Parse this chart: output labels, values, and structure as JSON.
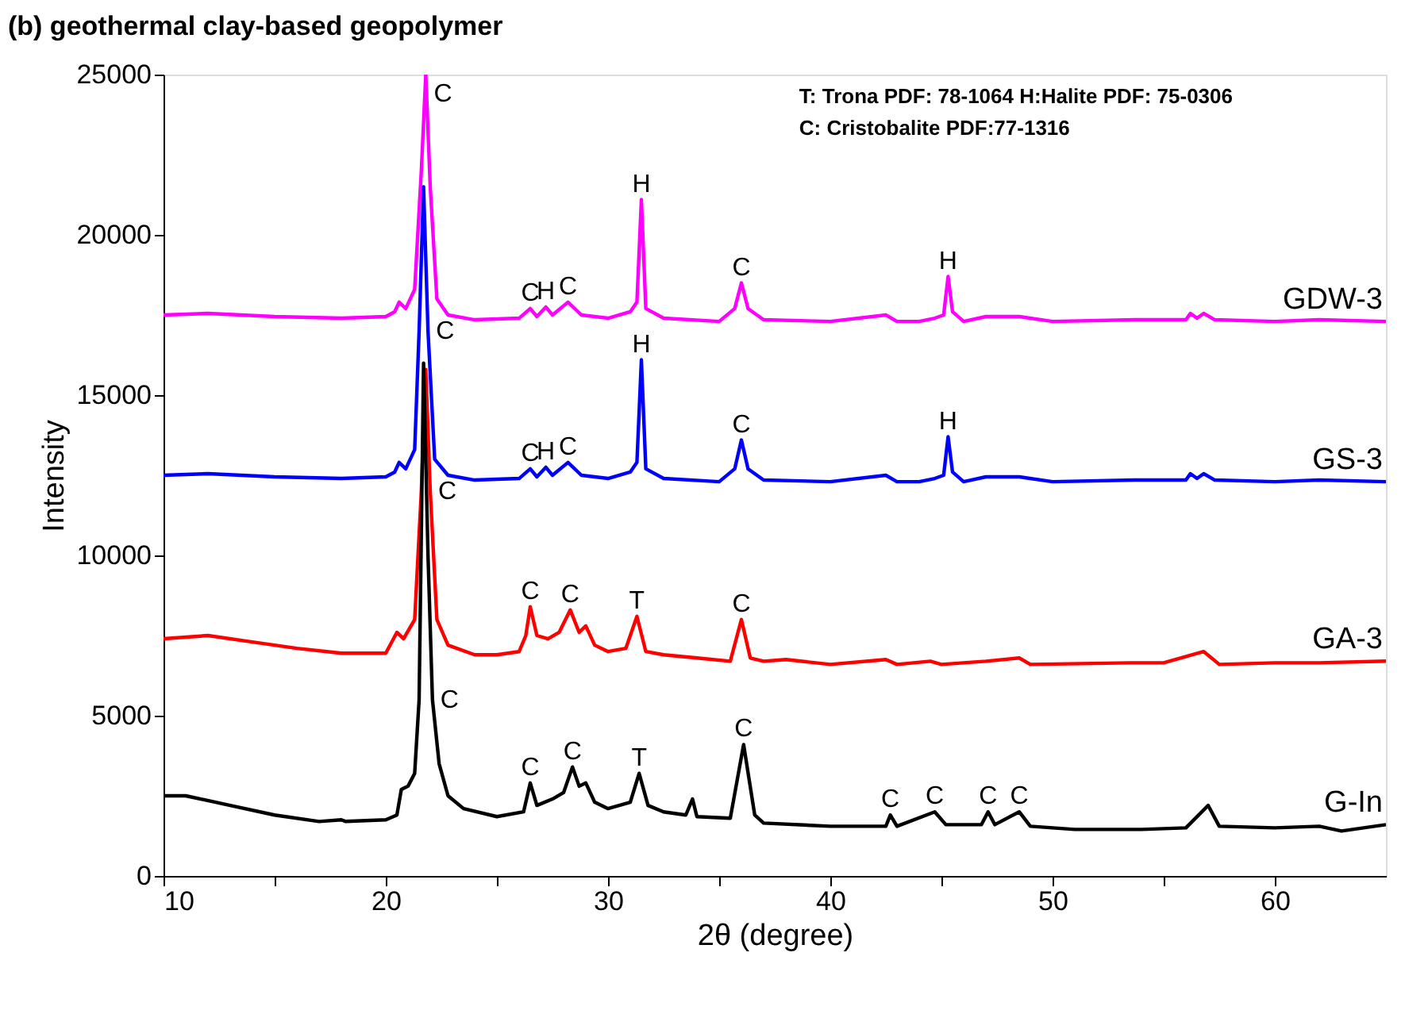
{
  "chart_data": {
    "type": "line",
    "title": "(b) geothermal clay-based geopolymer",
    "xlabel": "2θ (degree)",
    "ylabel": "Intensity",
    "xlim": [
      10,
      65
    ],
    "ylim": [
      0,
      25000
    ],
    "xticks": [
      10,
      {
        "value": 15,
        "label": null
      },
      20,
      {
        "value": 25,
        "label": null
      },
      30,
      {
        "value": 35,
        "label": null
      },
      40,
      {
        "value": 45,
        "label": null
      },
      50,
      {
        "value": 55,
        "label": null
      },
      60
    ],
    "yticks": [
      0,
      5000,
      10000,
      15000,
      20000,
      25000
    ],
    "grid": false,
    "legend": false,
    "marker": "none",
    "line_style": "solid",
    "series": [
      {
        "name": "GDW-3",
        "color": "#ff00ff",
        "x": [
          10,
          12,
          15,
          18,
          20,
          20.4,
          20.6,
          20.9,
          21.3,
          21.6,
          21.8,
          22.0,
          22.3,
          22.8,
          24,
          26,
          26.5,
          26.8,
          27.2,
          27.5,
          28.2,
          28.8,
          30,
          31,
          31.3,
          31.5,
          31.7,
          32.5,
          35,
          35.7,
          36,
          36.3,
          37,
          40,
          42.5,
          43,
          44,
          44.7,
          45.1,
          45.3,
          45.5,
          46,
          47,
          48.5,
          50,
          53.7,
          56,
          56.2,
          56.5,
          56.8,
          57.3,
          60,
          62,
          65
        ],
        "values": [
          17500,
          17550,
          17450,
          17400,
          17450,
          17600,
          17900,
          17700,
          18300,
          22000,
          25000,
          21500,
          18000,
          17500,
          17350,
          17400,
          17700,
          17450,
          17750,
          17500,
          17900,
          17500,
          17400,
          17600,
          17900,
          21100,
          17700,
          17400,
          17300,
          17700,
          18500,
          17700,
          17350,
          17300,
          17500,
          17300,
          17300,
          17400,
          17500,
          18700,
          17600,
          17300,
          17450,
          17450,
          17300,
          17350,
          17350,
          17550,
          17400,
          17550,
          17350,
          17300,
          17350,
          17300
        ]
      },
      {
        "name": "GS-3",
        "color": "#0000ff",
        "x": [
          10,
          12,
          15,
          18,
          20,
          20.4,
          20.6,
          20.9,
          21.3,
          21.5,
          21.7,
          21.9,
          22.2,
          22.8,
          24,
          26,
          26.5,
          26.8,
          27.2,
          27.5,
          28.2,
          28.8,
          30,
          31,
          31.3,
          31.5,
          31.7,
          32.5,
          35,
          35.7,
          36,
          36.3,
          37,
          40,
          42.5,
          43,
          44,
          44.7,
          45.1,
          45.3,
          45.5,
          46,
          47,
          48.5,
          50,
          53.7,
          56,
          56.2,
          56.5,
          56.8,
          57.3,
          60,
          62,
          65
        ],
        "values": [
          12500,
          12550,
          12450,
          12400,
          12450,
          12600,
          12900,
          12700,
          13300,
          17000,
          21500,
          17000,
          13000,
          12500,
          12350,
          12400,
          12700,
          12450,
          12750,
          12500,
          12900,
          12500,
          12400,
          12600,
          12900,
          16100,
          12700,
          12400,
          12300,
          12700,
          13600,
          12700,
          12350,
          12300,
          12500,
          12300,
          12300,
          12400,
          12500,
          13700,
          12600,
          12300,
          12450,
          12450,
          12300,
          12350,
          12350,
          12550,
          12400,
          12550,
          12350,
          12300,
          12350,
          12300
        ]
      },
      {
        "name": "GA-3",
        "color": "#ff0000",
        "x": [
          10,
          12,
          14,
          16,
          18,
          20,
          20.5,
          20.8,
          21.3,
          21.6,
          21.8,
          22.0,
          22.3,
          22.8,
          24,
          25,
          26,
          26.3,
          26.5,
          26.8,
          27.3,
          27.8,
          28.3,
          28.7,
          29,
          29.4,
          30,
          30.8,
          31.3,
          31.7,
          32.5,
          34,
          35.5,
          36,
          36.4,
          37,
          38,
          40,
          42.5,
          43,
          44.5,
          45,
          47,
          48.5,
          49,
          53.5,
          55,
          56.8,
          57.5,
          60,
          62,
          65
        ],
        "values": [
          7400,
          7500,
          7300,
          7100,
          6950,
          6950,
          7600,
          7400,
          8000,
          12000,
          15800,
          12000,
          8000,
          7200,
          6900,
          6900,
          7000,
          7500,
          8400,
          7500,
          7400,
          7600,
          8300,
          7600,
          7800,
          7200,
          7000,
          7100,
          8100,
          7000,
          6900,
          6800,
          6700,
          8000,
          6800,
          6700,
          6750,
          6600,
          6750,
          6600,
          6700,
          6600,
          6700,
          6800,
          6600,
          6650,
          6650,
          7000,
          6600,
          6650,
          6650,
          6700
        ]
      },
      {
        "name": "G-In",
        "color": "#000000",
        "x": [
          10,
          11,
          13,
          15,
          17,
          18,
          18.2,
          20,
          20.5,
          20.7,
          21,
          21.3,
          21.5,
          21.7,
          21.9,
          22.1,
          22.4,
          22.8,
          23.5,
          25,
          26.2,
          26.5,
          26.8,
          27.5,
          28,
          28.4,
          28.7,
          29,
          29.4,
          30,
          31,
          31.4,
          31.8,
          32.5,
          33.5,
          33.8,
          34,
          35.5,
          36.1,
          36.6,
          37,
          40,
          42.5,
          42.7,
          43,
          44.7,
          45.2,
          46.8,
          47.1,
          47.4,
          48.5,
          49,
          51,
          54,
          56,
          57,
          57.5,
          60,
          62,
          63,
          65
        ],
        "values": [
          2500,
          2500,
          2200,
          1900,
          1700,
          1750,
          1700,
          1750,
          1900,
          2700,
          2800,
          3200,
          5500,
          16000,
          10000,
          5500,
          3500,
          2500,
          2100,
          1850,
          2000,
          2900,
          2200,
          2400,
          2600,
          3400,
          2800,
          2900,
          2300,
          2100,
          2300,
          3200,
          2200,
          2000,
          1900,
          2400,
          1850,
          1800,
          4100,
          1900,
          1650,
          1550,
          1550,
          1900,
          1550,
          2000,
          1600,
          1600,
          2000,
          1600,
          2000,
          1550,
          1450,
          1450,
          1500,
          2200,
          1550,
          1500,
          1550,
          1400,
          1600
        ]
      }
    ],
    "annotations": [
      "T: Trona PDF: 78-1064  H:Halite PDF: 75-0306",
      "C: Cristobalite PDF:77-1316",
      {
        "text": "C",
        "x": 21.8,
        "y": 25000
      },
      {
        "text": "C",
        "x": 26.5,
        "y": 17700
      },
      {
        "text": "H",
        "x": 27.2,
        "y": 17750
      },
      {
        "text": "C",
        "x": 28.2,
        "y": 17900
      },
      {
        "text": "H",
        "x": 31.5,
        "y": 21100
      },
      {
        "text": "C",
        "x": 36,
        "y": 18500
      },
      {
        "text": "H",
        "x": 45.3,
        "y": 18700
      },
      {
        "text": "C",
        "x": 21.9,
        "y": 17000
      },
      {
        "text": "C",
        "x": 26.5,
        "y": 12700
      },
      {
        "text": "H",
        "x": 27.2,
        "y": 12750
      },
      {
        "text": "C",
        "x": 28.2,
        "y": 12900
      },
      {
        "text": "H",
        "x": 31.5,
        "y": 16100
      },
      {
        "text": "C",
        "x": 36,
        "y": 13600
      },
      {
        "text": "H",
        "x": 45.3,
        "y": 13700
      },
      {
        "text": "C",
        "x": 22.0,
        "y": 12000
      },
      {
        "text": "C",
        "x": 26.5,
        "y": 8400
      },
      {
        "text": "C",
        "x": 28.3,
        "y": 8300
      },
      {
        "text": "T",
        "x": 31.3,
        "y": 8100
      },
      {
        "text": "C",
        "x": 36,
        "y": 8000
      },
      {
        "text": "C",
        "x": 22.1,
        "y": 5500
      },
      {
        "text": "C",
        "x": 26.5,
        "y": 2900
      },
      {
        "text": "C",
        "x": 28.4,
        "y": 3400
      },
      {
        "text": "T",
        "x": 31.4,
        "y": 3200
      },
      {
        "text": "C",
        "x": 36.1,
        "y": 4100
      },
      {
        "text": "C",
        "x": 42.7,
        "y": 1900
      },
      {
        "text": "C",
        "x": 44.7,
        "y": 2000
      },
      {
        "text": "C",
        "x": 47.1,
        "y": 2000
      },
      {
        "text": "C",
        "x": 48.5,
        "y": 2000
      }
    ]
  }
}
